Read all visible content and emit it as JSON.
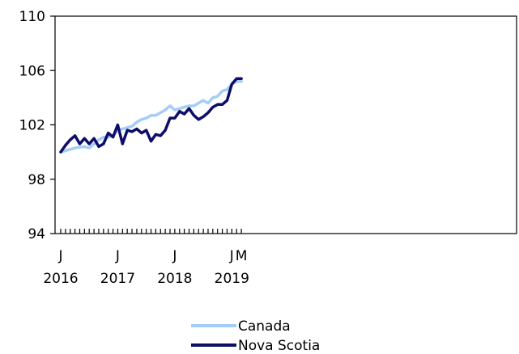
{
  "chart_data": {
    "type": "line",
    "title": "",
    "xlabel": "",
    "ylabel": "",
    "ylim": [
      94,
      110
    ],
    "yticks": [
      "110",
      "106",
      "102",
      "98",
      "94"
    ],
    "ytick_values": [
      110,
      106,
      102,
      98,
      94
    ],
    "x_labels": [
      {
        "month": "J",
        "year": "2016",
        "index": 0
      },
      {
        "month": "J",
        "year": "2017",
        "index": 12
      },
      {
        "month": "J",
        "year": "2018",
        "index": 24
      },
      {
        "month": "J",
        "year": "2019",
        "index": 36
      },
      {
        "month": "M",
        "year": "",
        "index": 38
      }
    ],
    "x_start": "2016-01",
    "x_end": "2019-03",
    "grid": false,
    "legend_position": "bottom",
    "series": [
      {
        "name": "Canada",
        "color": "#a6cdf7",
        "values": [
          100.0,
          100.1,
          100.2,
          100.3,
          100.35,
          100.4,
          100.3,
          100.6,
          100.9,
          101.1,
          101.1,
          101.2,
          101.6,
          101.7,
          101.8,
          101.9,
          102.2,
          102.4,
          102.5,
          102.7,
          102.7,
          102.9,
          103.1,
          103.4,
          103.1,
          103.2,
          103.3,
          103.4,
          103.4,
          103.6,
          103.8,
          103.6,
          104.0,
          104.1,
          104.5,
          104.6,
          105.0,
          105.2,
          105.2
        ]
      },
      {
        "name": "Nova Scotia",
        "color": "#0d0d6b",
        "values": [
          100.0,
          100.5,
          100.9,
          101.2,
          100.6,
          101.0,
          100.6,
          101.0,
          100.4,
          100.6,
          101.4,
          101.1,
          102.0,
          100.6,
          101.6,
          101.5,
          101.7,
          101.4,
          101.6,
          100.8,
          101.3,
          101.2,
          101.6,
          102.5,
          102.5,
          103.0,
          102.8,
          103.2,
          102.7,
          102.4,
          102.6,
          102.9,
          103.3,
          103.5,
          103.5,
          103.8,
          105.0,
          105.4,
          105.4
        ]
      }
    ]
  }
}
